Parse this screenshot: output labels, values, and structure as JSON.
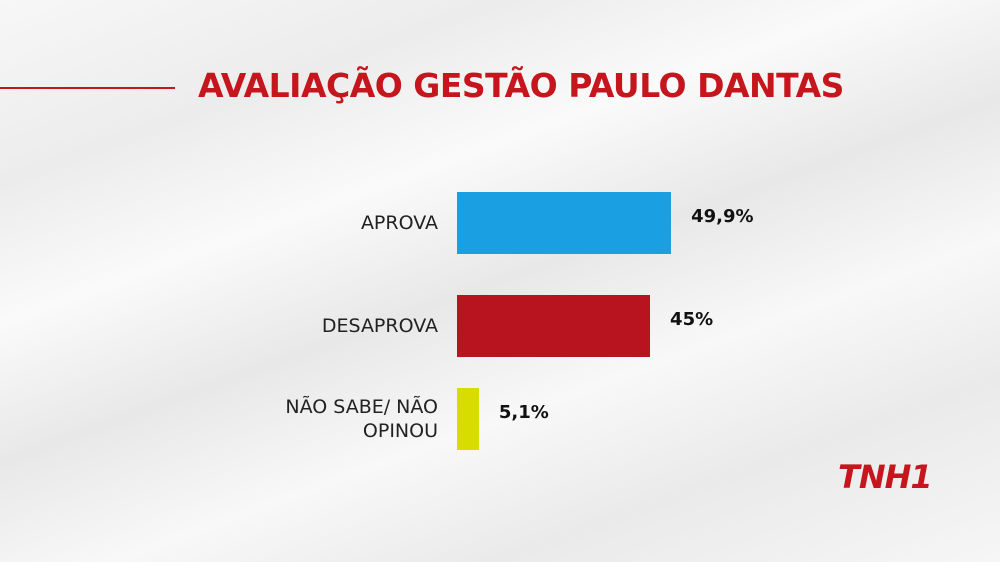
{
  "chart_data": {
    "type": "bar",
    "orientation": "horizontal",
    "title": "AVALIAÇÃO GESTÃO PAULO DANTAS",
    "categories": [
      "APROVA",
      "DESAPROVA",
      "NÃO SABE/ NÃO OPINOU"
    ],
    "values": [
      49.9,
      45,
      5.1
    ],
    "value_labels": [
      "49,9%",
      "45%",
      "5,1%"
    ],
    "colors": [
      "#1a9fe2",
      "#b8141f",
      "#d8dc00"
    ]
  },
  "logo": "TNH1"
}
